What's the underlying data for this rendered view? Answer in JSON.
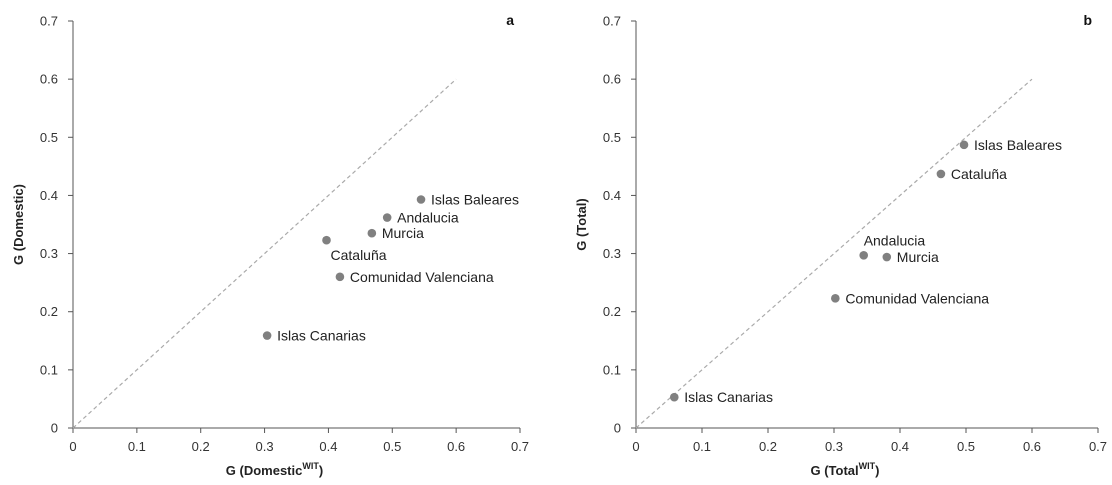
{
  "chart_data": [
    {
      "type": "scatter",
      "panel_letter": "a",
      "xlabel": "G (Domestic",
      "xlabel_sup": "WIT",
      "xlabel_close": ")",
      "ylabel": "G (Domestic)",
      "xlim": [
        0,
        0.7
      ],
      "ylim": [
        0,
        0.7
      ],
      "xticks": [
        0,
        0.1,
        0.2,
        0.3,
        0.4,
        0.5,
        0.6,
        0.7
      ],
      "yticks": [
        0,
        0.1,
        0.2,
        0.3,
        0.4,
        0.5,
        0.6,
        0.7
      ],
      "xtick_labels": [
        "0",
        "0.1",
        "0.2",
        "0.3",
        "0.4",
        "0.5",
        "0.6",
        "0.7"
      ],
      "ytick_labels": [
        "0",
        "0.1",
        "0.2",
        "0.3",
        "0.4",
        "0.5",
        "0.6",
        "0.7"
      ],
      "reference_line": {
        "from": [
          0,
          0
        ],
        "to": [
          0.6,
          0.6
        ],
        "style": "dashed"
      },
      "marker_color": "#808080",
      "points": [
        {
          "label": "Islas Baleares",
          "x": 0.545,
          "y": 0.393,
          "label_pos": "right"
        },
        {
          "label": "Andalucia",
          "x": 0.492,
          "y": 0.362,
          "label_pos": "right"
        },
        {
          "label": "Murcia",
          "x": 0.468,
          "y": 0.335,
          "label_pos": "right"
        },
        {
          "label": "Cataluña",
          "x": 0.397,
          "y": 0.323,
          "label_pos": "below-right"
        },
        {
          "label": "Comunidad Valenciana",
          "x": 0.418,
          "y": 0.26,
          "label_pos": "right"
        },
        {
          "label": "Islas Canarias",
          "x": 0.304,
          "y": 0.159,
          "label_pos": "right"
        }
      ]
    },
    {
      "type": "scatter",
      "panel_letter": "b",
      "xlabel": "G (Total",
      "xlabel_sup": "WIT",
      "xlabel_close": ")",
      "ylabel": "G (Total)",
      "xlim": [
        0,
        0.7
      ],
      "ylim": [
        0,
        0.7
      ],
      "xticks": [
        0,
        0.1,
        0.2,
        0.3,
        0.4,
        0.5,
        0.6,
        0.7
      ],
      "yticks": [
        0,
        0.1,
        0.2,
        0.3,
        0.4,
        0.5,
        0.6,
        0.7
      ],
      "xtick_labels": [
        "0",
        "0.1",
        "0.2",
        "0.3",
        "0.4",
        "0.5",
        "0.6",
        "0.7"
      ],
      "ytick_labels": [
        "0",
        "0.1",
        "0.2",
        "0.3",
        "0.4",
        "0.5",
        "0.6",
        "0.7"
      ],
      "reference_line": {
        "from": [
          0,
          0
        ],
        "to": [
          0.6,
          0.6
        ],
        "style": "dashed"
      },
      "marker_color": "#808080",
      "points": [
        {
          "label": "Islas Baleares",
          "x": 0.497,
          "y": 0.487,
          "label_pos": "right"
        },
        {
          "label": "Cataluña",
          "x": 0.462,
          "y": 0.437,
          "label_pos": "right"
        },
        {
          "label": "Andalucia",
          "x": 0.345,
          "y": 0.297,
          "label_pos": "above-right"
        },
        {
          "label": "Murcia",
          "x": 0.38,
          "y": 0.294,
          "label_pos": "right"
        },
        {
          "label": "Comunidad Valenciana",
          "x": 0.302,
          "y": 0.223,
          "label_pos": "right"
        },
        {
          "label": "Islas Canarias",
          "x": 0.058,
          "y": 0.053,
          "label_pos": "right"
        }
      ]
    }
  ]
}
